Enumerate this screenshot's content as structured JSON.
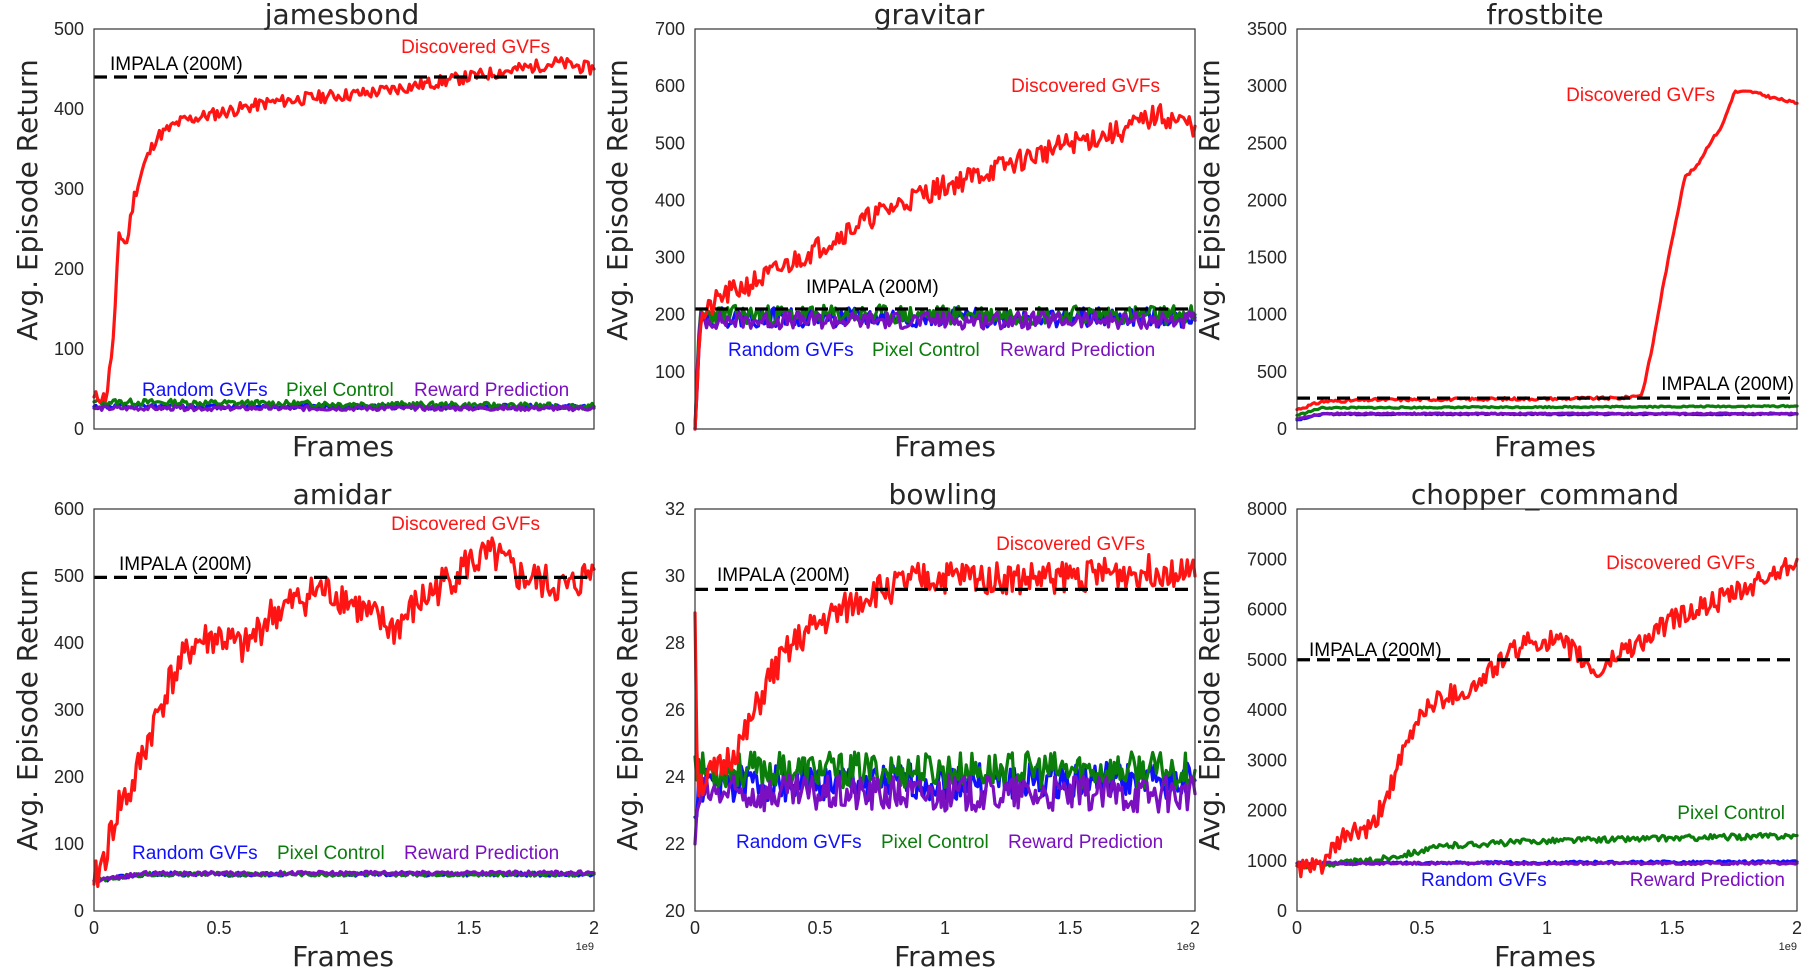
{
  "figure": {
    "x_exponent_label": "1e9"
  },
  "colors": {
    "discovered": "#ff1414",
    "random": "#1010ff",
    "pixel": "#0a7d0a",
    "reward": "#7a10c0",
    "impala": "#000000"
  },
  "chart_data": [
    {
      "id": "jamesbond",
      "type": "line",
      "title": "jamesbond",
      "xlabel": "Frames",
      "ylabel": "Avg. Episode Return",
      "xlim": [
        0,
        2
      ],
      "ylim": [
        0,
        500
      ],
      "xticks": [],
      "yticks": [
        0,
        100,
        200,
        300,
        400,
        500
      ],
      "impala": 440,
      "series": [
        {
          "name": "Discovered GVFs",
          "color": "#ff1414",
          "seed": 11,
          "noise": 8,
          "points": [
            [
              0,
              40
            ],
            [
              0.05,
              40
            ],
            [
              0.08,
              120
            ],
            [
              0.1,
              245
            ],
            [
              0.13,
              230
            ],
            [
              0.16,
              290
            ],
            [
              0.2,
              330
            ],
            [
              0.25,
              365
            ],
            [
              0.35,
              385
            ],
            [
              0.5,
              395
            ],
            [
              0.7,
              408
            ],
            [
              0.9,
              415
            ],
            [
              1.1,
              420
            ],
            [
              1.3,
              430
            ],
            [
              1.5,
              440
            ],
            [
              1.7,
              450
            ],
            [
              1.85,
              458
            ],
            [
              2,
              450
            ]
          ]
        },
        {
          "name": "Random GVFs",
          "color": "#1010ff",
          "seed": 12,
          "noise": 3,
          "points": [
            [
              0,
              28
            ],
            [
              2,
              28
            ]
          ]
        },
        {
          "name": "Pixel Control",
          "color": "#0a7d0a",
          "seed": 13,
          "noise": 4,
          "points": [
            [
              0,
              34
            ],
            [
              2,
              28
            ]
          ]
        },
        {
          "name": "Reward Prediction",
          "color": "#7a10c0",
          "seed": 14,
          "noise": 3,
          "points": [
            [
              0,
              26
            ],
            [
              2,
              26
            ]
          ]
        }
      ],
      "labels": {
        "discovered": "Discovered GVFs",
        "impala": "IMPALA (200M)",
        "random": "Random GVFs",
        "pixel": "Pixel Control",
        "reward": "Reward Prediction"
      }
    },
    {
      "id": "gravitar",
      "type": "line",
      "title": "gravitar",
      "xlabel": "Frames",
      "ylabel": "Avg. Episode Return",
      "xlim": [
        0,
        2
      ],
      "ylim": [
        0,
        700
      ],
      "xticks": [],
      "yticks": [
        0,
        100,
        200,
        300,
        400,
        500,
        600,
        700
      ],
      "impala": 210,
      "series": [
        {
          "name": "Discovered GVFs",
          "color": "#ff1414",
          "seed": 21,
          "noise": 20,
          "points": [
            [
              0,
              0
            ],
            [
              0.02,
              190
            ],
            [
              0.1,
              230
            ],
            [
              0.3,
              270
            ],
            [
              0.5,
              320
            ],
            [
              0.7,
              370
            ],
            [
              0.9,
              410
            ],
            [
              1.1,
              440
            ],
            [
              1.3,
              470
            ],
            [
              1.5,
              500
            ],
            [
              1.7,
              520
            ],
            [
              1.85,
              550
            ],
            [
              2,
              530
            ]
          ]
        },
        {
          "name": "Random GVFs",
          "color": "#1010ff",
          "seed": 22,
          "noise": 17,
          "points": [
            [
              0,
              0
            ],
            [
              0.02,
              195
            ],
            [
              2,
              195
            ]
          ]
        },
        {
          "name": "Pixel Control",
          "color": "#0a7d0a",
          "seed": 23,
          "noise": 17,
          "points": [
            [
              0,
              0
            ],
            [
              0.02,
              200
            ],
            [
              2,
              200
            ]
          ]
        },
        {
          "name": "Reward Prediction",
          "color": "#7a10c0",
          "seed": 24,
          "noise": 15,
          "points": [
            [
              0,
              0
            ],
            [
              0.02,
              190
            ],
            [
              2,
              190
            ]
          ]
        }
      ],
      "labels": {
        "discovered": "Discovered GVFs",
        "impala": "IMPALA (200M)",
        "random": "Random GVFs",
        "pixel": "Pixel Control",
        "reward": "Reward Prediction"
      }
    },
    {
      "id": "frostbite",
      "type": "line",
      "title": "frostbite",
      "xlabel": "Frames",
      "ylabel": "Avg. Episode Return",
      "xlim": [
        0,
        2
      ],
      "ylim": [
        0,
        3500
      ],
      "xticks": [],
      "yticks": [
        0,
        500,
        1000,
        1500,
        2000,
        2500,
        3000,
        3500
      ],
      "impala": 270,
      "series": [
        {
          "name": "Discovered GVFs",
          "color": "#ff1414",
          "seed": 31,
          "noise": 12,
          "points": [
            [
              0,
              170
            ],
            [
              0.1,
              240
            ],
            [
              0.3,
              255
            ],
            [
              0.6,
              260
            ],
            [
              1.0,
              265
            ],
            [
              1.3,
              270
            ],
            [
              1.38,
              300
            ],
            [
              1.42,
              700
            ],
            [
              1.46,
              1200
            ],
            [
              1.5,
              1650
            ],
            [
              1.55,
              2200
            ],
            [
              1.6,
              2300
            ],
            [
              1.65,
              2500
            ],
            [
              1.7,
              2650
            ],
            [
              1.75,
              2950
            ],
            [
              1.82,
              2950
            ],
            [
              1.9,
              2900
            ],
            [
              2,
              2850
            ]
          ]
        },
        {
          "name": "Random GVFs",
          "color": "#1010ff",
          "seed": 32,
          "noise": 6,
          "points": [
            [
              0,
              80
            ],
            [
              0.1,
              130
            ],
            [
              2,
              130
            ]
          ]
        },
        {
          "name": "Pixel Control",
          "color": "#0a7d0a",
          "seed": 33,
          "noise": 6,
          "points": [
            [
              0,
              120
            ],
            [
              0.1,
              185
            ],
            [
              2,
              200
            ]
          ]
        },
        {
          "name": "Reward Prediction",
          "color": "#7a10c0",
          "seed": 34,
          "noise": 6,
          "points": [
            [
              0,
              90
            ],
            [
              0.1,
              135
            ],
            [
              2,
              135
            ]
          ]
        }
      ],
      "labels": {
        "discovered": "Discovered GVFs",
        "impala": "IMPALA (200M)"
      }
    },
    {
      "id": "amidar",
      "type": "line",
      "title": "amidar",
      "xlabel": "Frames",
      "ylabel": "Avg. Episode Return",
      "xlim": [
        0,
        2
      ],
      "ylim": [
        0,
        600
      ],
      "xticks": [
        0.0,
        0.5,
        1.0,
        1.5,
        2.0
      ],
      "yticks": [
        0,
        100,
        200,
        300,
        400,
        500,
        600
      ],
      "impala": 498,
      "series": [
        {
          "name": "Discovered GVFs",
          "color": "#ff1414",
          "seed": 41,
          "noise": 28,
          "points": [
            [
              0,
              40
            ],
            [
              0.05,
              90
            ],
            [
              0.1,
              160
            ],
            [
              0.15,
              180
            ],
            [
              0.2,
              240
            ],
            [
              0.3,
              340
            ],
            [
              0.4,
              400
            ],
            [
              0.5,
              410
            ],
            [
              0.6,
              390
            ],
            [
              0.7,
              440
            ],
            [
              0.8,
              460
            ],
            [
              0.9,
              480
            ],
            [
              1.0,
              470
            ],
            [
              1.1,
              440
            ],
            [
              1.2,
              420
            ],
            [
              1.3,
              460
            ],
            [
              1.4,
              490
            ],
            [
              1.5,
              520
            ],
            [
              1.6,
              530
            ],
            [
              1.7,
              500
            ],
            [
              1.8,
              490
            ],
            [
              1.9,
              480
            ],
            [
              2,
              510
            ]
          ]
        },
        {
          "name": "Random GVFs",
          "color": "#1010ff",
          "seed": 42,
          "noise": 3,
          "points": [
            [
              0,
              45
            ],
            [
              0.2,
              55
            ],
            [
              2,
              55
            ]
          ]
        },
        {
          "name": "Pixel Control",
          "color": "#0a7d0a",
          "seed": 43,
          "noise": 3,
          "points": [
            [
              0,
              45
            ],
            [
              0.2,
              55
            ],
            [
              2,
              55
            ]
          ]
        },
        {
          "name": "Reward Prediction",
          "color": "#7a10c0",
          "seed": 44,
          "noise": 3,
          "points": [
            [
              0,
              45
            ],
            [
              0.2,
              56
            ],
            [
              2,
              57
            ]
          ]
        }
      ],
      "labels": {
        "discovered": "Discovered GVFs",
        "impala": "IMPALA (200M)",
        "random": "Random GVFs",
        "pixel": "Pixel Control",
        "reward": "Reward Prediction"
      }
    },
    {
      "id": "bowling",
      "type": "line",
      "title": "bowling",
      "xlabel": "Frames",
      "ylabel": "Avg. Episode Return",
      "xlim": [
        0,
        2
      ],
      "ylim": [
        20,
        32
      ],
      "xticks": [
        0.0,
        0.5,
        1.0,
        1.5,
        2.0
      ],
      "yticks": [
        20,
        22,
        24,
        26,
        28,
        30,
        32
      ],
      "impala": 29.6,
      "series": [
        {
          "name": "Discovered GVFs",
          "color": "#ff1414",
          "seed": 51,
          "noise": 0.5,
          "points": [
            [
              0,
              28.9
            ],
            [
              0.01,
              23.8
            ],
            [
              0.1,
              24.2
            ],
            [
              0.2,
              25.2
            ],
            [
              0.3,
              27.0
            ],
            [
              0.4,
              28.0
            ],
            [
              0.5,
              28.6
            ],
            [
              0.6,
              29.0
            ],
            [
              0.7,
              29.5
            ],
            [
              0.9,
              29.9
            ],
            [
              1.1,
              30.0
            ],
            [
              1.3,
              29.9
            ],
            [
              1.5,
              30.0
            ],
            [
              1.7,
              30.1
            ],
            [
              1.9,
              30.2
            ],
            [
              2,
              30.0
            ]
          ]
        },
        {
          "name": "Random GVFs",
          "color": "#1010ff",
          "seed": 52,
          "noise": 0.55,
          "points": [
            [
              0,
              22.8
            ],
            [
              0.02,
              23.8
            ],
            [
              2,
              23.9
            ]
          ]
        },
        {
          "name": "Pixel Control",
          "color": "#0a7d0a",
          "seed": 53,
          "noise": 0.55,
          "points": [
            [
              0,
              24.6
            ],
            [
              0.02,
              24.2
            ],
            [
              2,
              24.2
            ]
          ]
        },
        {
          "name": "Reward Prediction",
          "color": "#7a10c0",
          "seed": 54,
          "noise": 0.55,
          "points": [
            [
              0,
              22.0
            ],
            [
              0.02,
              23.5
            ],
            [
              2,
              23.5
            ]
          ]
        }
      ],
      "labels": {
        "discovered": "Discovered GVFs",
        "impala": "IMPALA (200M)",
        "random": "Random GVFs",
        "pixel": "Pixel Control",
        "reward": "Reward Prediction"
      }
    },
    {
      "id": "chopper_command",
      "type": "line",
      "title": "chopper_command",
      "xlabel": "Frames",
      "ylabel": "Avg. Episode Return",
      "xlim": [
        0,
        2
      ],
      "ylim": [
        0,
        8000
      ],
      "xticks": [
        0.0,
        0.5,
        1.0,
        1.5,
        2.0
      ],
      "yticks": [
        0,
        1000,
        2000,
        3000,
        4000,
        5000,
        6000,
        7000,
        8000
      ],
      "impala": 5000,
      "series": [
        {
          "name": "Discovered GVFs",
          "color": "#ff1414",
          "seed": 61,
          "noise": 220,
          "points": [
            [
              0,
              900
            ],
            [
              0.05,
              800
            ],
            [
              0.1,
              950
            ],
            [
              0.15,
              1200
            ],
            [
              0.2,
              1550
            ],
            [
              0.3,
              1600
            ],
            [
              0.4,
              2800
            ],
            [
              0.5,
              4000
            ],
            [
              0.6,
              4300
            ],
            [
              0.7,
              4400
            ],
            [
              0.8,
              4900
            ],
            [
              0.9,
              5300
            ],
            [
              1.0,
              5400
            ],
            [
              1.1,
              5200
            ],
            [
              1.2,
              4700
            ],
            [
              1.3,
              5200
            ],
            [
              1.4,
              5400
            ],
            [
              1.5,
              5800
            ],
            [
              1.6,
              6000
            ],
            [
              1.7,
              6200
            ],
            [
              1.8,
              6400
            ],
            [
              1.9,
              6700
            ],
            [
              2,
              7000
            ]
          ]
        },
        {
          "name": "Random GVFs",
          "color": "#1010ff",
          "seed": 62,
          "noise": 25,
          "points": [
            [
              0,
              950
            ],
            [
              2,
              980
            ]
          ]
        },
        {
          "name": "Pixel Control",
          "color": "#0a7d0a",
          "seed": 63,
          "noise": 60,
          "points": [
            [
              0,
              900
            ],
            [
              0.3,
              1000
            ],
            [
              0.6,
              1300
            ],
            [
              1.0,
              1400
            ],
            [
              1.5,
              1450
            ],
            [
              2,
              1500
            ]
          ]
        },
        {
          "name": "Reward Prediction",
          "color": "#7a10c0",
          "seed": 64,
          "noise": 25,
          "points": [
            [
              0,
              950
            ],
            [
              2,
              950
            ]
          ]
        }
      ],
      "labels": {
        "discovered": "Discovered GVFs",
        "impala": "IMPALA (200M)",
        "random": "Random GVFs",
        "pixel": "Pixel Control",
        "reward": "Reward Prediction"
      }
    }
  ]
}
